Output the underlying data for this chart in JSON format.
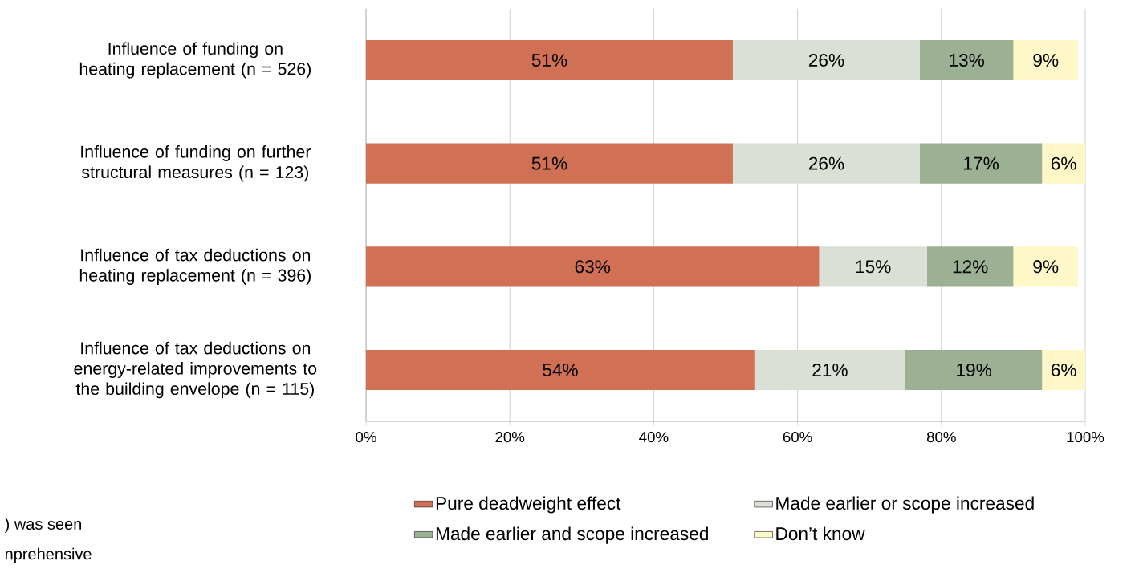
{
  "chart_data": {
    "type": "bar",
    "orientation": "horizontal",
    "stacked": true,
    "categories": [
      "Influence of funding on heating replacement (n = 526)",
      "Influence of funding on further structural measures (n = 123)",
      "Influence of tax deductions on heating replacement (n = 396)",
      "Influence of tax deductions on energy-related improvements to the building envelope (n = 115)"
    ],
    "series": [
      {
        "name": "Pure deadweight effect",
        "color": "#d07055",
        "values": [
          51,
          51,
          63,
          54
        ],
        "value_labels": [
          "51%",
          "51%",
          "63%",
          "54%"
        ]
      },
      {
        "name": "Made earlier or scope increased",
        "color": "#dae0d6",
        "values": [
          26,
          26,
          15,
          21
        ],
        "value_labels": [
          "26%",
          "26%",
          "15%",
          "21%"
        ]
      },
      {
        "name": "Made earlier and scope increased",
        "color": "#9cb094",
        "values": [
          13,
          17,
          12,
          19
        ],
        "value_labels": [
          "13%",
          "17%",
          "12%",
          "19%"
        ]
      },
      {
        "name": "Don’t know",
        "color": "#fef8c8",
        "values": [
          9,
          6,
          9,
          6
        ],
        "value_labels": [
          "9%",
          "6%",
          "9%",
          "6%"
        ]
      }
    ],
    "xlim": [
      0,
      100
    ],
    "xticks": [
      {
        "value": 0,
        "label": "0%"
      },
      {
        "value": 20,
        "label": "20%"
      },
      {
        "value": 40,
        "label": "40%"
      },
      {
        "value": 60,
        "label": "60%"
      },
      {
        "value": 80,
        "label": "80%"
      },
      {
        "value": 100,
        "label": "100%"
      }
    ],
    "grid": "x",
    "legend": "bottom",
    "annotations": [
      ") was seen",
      "nprehensive"
    ]
  }
}
